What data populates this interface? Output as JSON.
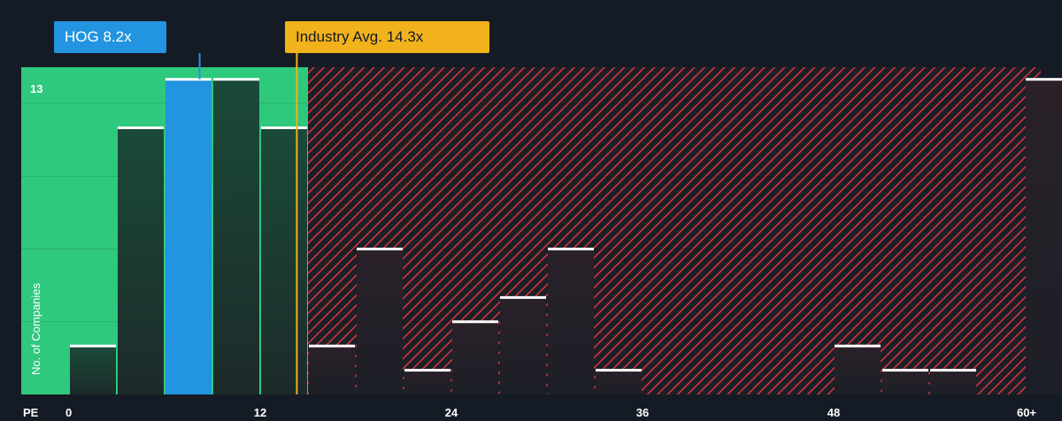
{
  "chart_data": {
    "type": "bar",
    "x_label_prefix": "PE",
    "ylabel": "No. of Companies",
    "ytick_label": "13",
    "xlim": [
      -3,
      61
    ],
    "ylim": [
      0,
      13.5
    ],
    "xticks": [
      {
        "value": 0,
        "label": "0"
      },
      {
        "value": 12,
        "label": "12"
      },
      {
        "value": 24,
        "label": "24"
      },
      {
        "value": 36,
        "label": "36"
      },
      {
        "value": 48,
        "label": "48"
      },
      {
        "value": 60,
        "label": "60+"
      }
    ],
    "bin_width": 3,
    "bins": [
      {
        "start": 0,
        "count": 2
      },
      {
        "start": 3,
        "count": 11
      },
      {
        "start": 6,
        "count": 13,
        "highlight": true
      },
      {
        "start": 9,
        "count": 13
      },
      {
        "start": 12,
        "count": 11
      },
      {
        "start": 15,
        "count": 2
      },
      {
        "start": 18,
        "count": 6
      },
      {
        "start": 21,
        "count": 1
      },
      {
        "start": 24,
        "count": 3
      },
      {
        "start": 27,
        "count": 4
      },
      {
        "start": 30,
        "count": 6
      },
      {
        "start": 33,
        "count": 1
      },
      {
        "start": 48,
        "count": 2
      },
      {
        "start": 51,
        "count": 1
      },
      {
        "start": 54,
        "count": 1
      },
      {
        "start": 60,
        "count": 13
      }
    ],
    "company": {
      "label": "HOG 8.2x",
      "value": 8.2
    },
    "industry": {
      "label": "Industry Avg. 14.3x",
      "value": 14.3
    },
    "colors": {
      "background": "#151b24",
      "green_zone": "#2fc97e",
      "red_zone": "#d9353e",
      "highlight_bar": "#2394df",
      "company_callout": "#2394df",
      "industry_callout": "#f1b21c",
      "bar_top": "#ffffff"
    }
  }
}
